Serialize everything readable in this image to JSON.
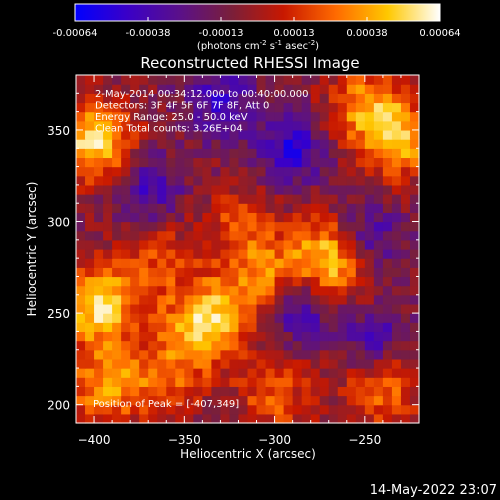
{
  "chart_data": {
    "type": "heatmap",
    "title": "Reconstructed RHESSI Image",
    "colorbar": {
      "ticks": [
        "-0.00064",
        "-0.00038",
        "-0.00013",
        "0.00013",
        "0.00038",
        "0.00064"
      ],
      "unit_text": "(photons cm",
      "unit_exp1": "-2",
      "unit_mid1": " s",
      "unit_exp2": "-1",
      "unit_mid2": " asec",
      "unit_exp3": "-2",
      "unit_end": ")",
      "colors": [
        "#0000ff",
        "#3a00c8",
        "#5a108a",
        "#7a1f3a",
        "#c81800",
        "#ff6a00",
        "#ffc800",
        "#ffffff"
      ]
    },
    "xlabel": "Heliocentric X (arcsec)",
    "ylabel": "Heliocentric Y (arcsec)",
    "xticks": [
      -400,
      -350,
      -300,
      -250
    ],
    "yticks": [
      200,
      250,
      300,
      350
    ],
    "xlim": [
      -410,
      -220
    ],
    "ylim": [
      190,
      380
    ],
    "annotations": [
      "2-May-2014 00:34:12.000 to 00:40:00.000",
      "Detectors: 3F 4F 5F 6F 7F 8F, Att 0",
      "Energy Range: 25.0 - 50.0 keV",
      "Clean    Total counts: 3.26E+04"
    ],
    "peak_label": "Position of Peak = [-407,349]",
    "peak": [
      -407,
      349
    ],
    "bright_regions": [
      {
        "x": -338,
        "y": 245,
        "level": 0.95
      },
      {
        "x": -268,
        "y": 280,
        "level": 0.95
      },
      {
        "x": -305,
        "y": 268,
        "level": 0.8
      },
      {
        "x": -320,
        "y": 300,
        "level": 0.65
      },
      {
        "x": -232,
        "y": 345,
        "level": 0.85
      },
      {
        "x": -250,
        "y": 365,
        "level": 0.75
      },
      {
        "x": -400,
        "y": 345,
        "level": 0.95
      },
      {
        "x": -398,
        "y": 255,
        "level": 0.95
      },
      {
        "x": -395,
        "y": 210,
        "level": 0.8
      },
      {
        "x": -360,
        "y": 215,
        "level": 0.7
      },
      {
        "x": -300,
        "y": 205,
        "level": 0.7
      },
      {
        "x": -240,
        "y": 210,
        "level": 0.75
      },
      {
        "x": -365,
        "y": 280,
        "level": 0.65
      }
    ],
    "dark_regions": [
      {
        "x": -290,
        "y": 340,
        "level": 0.15
      },
      {
        "x": -250,
        "y": 290,
        "level": 0.15
      },
      {
        "x": -288,
        "y": 255,
        "level": 0.1
      },
      {
        "x": -330,
        "y": 365,
        "level": 0.2
      },
      {
        "x": -370,
        "y": 318,
        "level": 0.2
      },
      {
        "x": -245,
        "y": 235,
        "level": 0.2
      }
    ]
  },
  "footer": {
    "timestamp": "14-May-2022 23:07"
  }
}
